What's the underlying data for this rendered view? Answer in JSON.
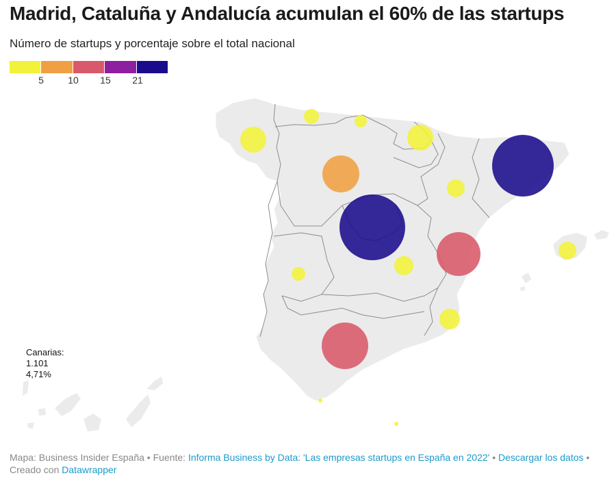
{
  "header": {
    "title": "Madrid, Cataluña y Andalucía acumulan el 60% de las startups",
    "subtitle": "Número de startups y porcentaje sobre el total nacional"
  },
  "legend": {
    "colors": [
      "#f2f23a",
      "#f0a042",
      "#d9596a",
      "#8e1fa0",
      "#1a0b8c"
    ],
    "tick_labels": [
      "5",
      "10",
      "15",
      "21"
    ]
  },
  "map": {
    "land_color": "#ebebeb",
    "border_color": "#8c8c8c",
    "regions": [
      {
        "name": "Galicia",
        "level": 1
      },
      {
        "name": "Asturias",
        "level": 1
      },
      {
        "name": "Cantabria",
        "level": 1
      },
      {
        "name": "País Vasco",
        "level": 1
      },
      {
        "name": "Castilla y León",
        "level": 2
      },
      {
        "name": "Aragón",
        "level": 1
      },
      {
        "name": "Cataluña",
        "level": 5
      },
      {
        "name": "Madrid",
        "level": 5
      },
      {
        "name": "Castilla-La Mancha",
        "level": 1
      },
      {
        "name": "Comunidad Valenciana",
        "level": 3
      },
      {
        "name": "Islas Baleares",
        "level": 1
      },
      {
        "name": "Extremadura",
        "level": 1
      },
      {
        "name": "Región de Murcia",
        "level": 1
      },
      {
        "name": "Andalucía",
        "level": 3
      },
      {
        "name": "Ceuta",
        "level": 1
      },
      {
        "name": "Melilla",
        "level": 1
      }
    ]
  },
  "canarias": {
    "name": "Canarias:",
    "count": "1.101",
    "percent": "4,71%"
  },
  "footer": {
    "map_credit": "Mapa: Business Insider España",
    "source_prefix": " • Fuente: ",
    "source_link": "Informa Business by Data: 'Las empresas startups en España en 2022'",
    "sep": " • ",
    "download_link": "Descargar los datos",
    "created_prefix": " • Creado con ",
    "tool_link": "Datawrapper"
  }
}
